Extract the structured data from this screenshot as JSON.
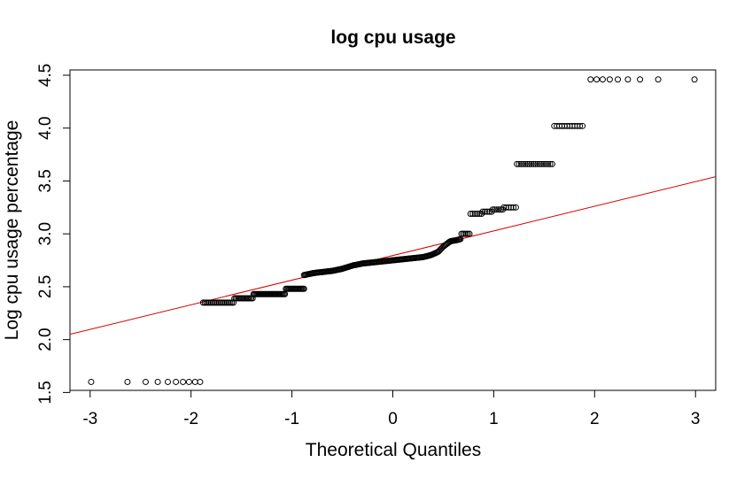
{
  "chart_data": {
    "type": "scatter",
    "subtype": "normal-qq-plot",
    "title": "log cpu usage",
    "xlabel": "Theoretical Quantiles",
    "ylabel": "Log cpu usage percentage",
    "xlim": [
      -3.2,
      3.2
    ],
    "ylim": [
      1.52,
      4.55
    ],
    "xticks": [
      -3,
      -2,
      -1,
      0,
      1,
      2,
      3
    ],
    "xtick_labels": [
      "-3",
      "-2",
      "-1",
      "0",
      "1",
      "2",
      "3"
    ],
    "yticks": [
      1.5,
      2.0,
      2.5,
      3.0,
      3.5,
      4.0,
      4.5
    ],
    "ytick_labels": [
      "1.5",
      "2.0",
      "2.5",
      "3.0",
      "3.5",
      "4.0",
      "4.5"
    ],
    "grid": false,
    "point_color": "#000000",
    "reference_line": {
      "color": "#d40000",
      "x": [
        -3.2,
        3.2
      ],
      "y": [
        2.05,
        3.54
      ]
    },
    "tiers": [
      {
        "y": 1.6,
        "x": [
          -2.99,
          -2.63,
          -2.45,
          -2.33,
          -2.23,
          -2.15,
          -2.08,
          -2.02,
          -1.96,
          -1.91
        ]
      },
      {
        "y": 2.35,
        "x_start": -1.88,
        "x_end": -1.58,
        "count": 20
      },
      {
        "y": 2.39,
        "x_start": -1.57,
        "x_end": -1.39,
        "count": 14
      },
      {
        "y": 2.43,
        "x_start": -1.38,
        "x_end": -1.07,
        "count": 28
      },
      {
        "y": 2.48,
        "x_start": -1.06,
        "x_end": -0.88,
        "count": 18
      },
      {
        "y": 3.0,
        "x_start": 0.68,
        "x_end": 0.76,
        "count": 6
      },
      {
        "y": 3.19,
        "x_start": 0.77,
        "x_end": 0.88,
        "count": 6
      },
      {
        "y": 3.21,
        "x_start": 0.89,
        "x_end": 0.98,
        "count": 5
      },
      {
        "y": 3.23,
        "x_start": 0.99,
        "x_end": 1.09,
        "count": 6
      },
      {
        "y": 3.25,
        "x_start": 1.1,
        "x_end": 1.22,
        "count": 6
      },
      {
        "y": 3.66,
        "x_start": 1.23,
        "x_end": 1.58,
        "count": 18
      },
      {
        "y": 4.02,
        "x_start": 1.6,
        "x_end": 1.88,
        "count": 12
      },
      {
        "y": 4.46,
        "x": [
          1.96,
          2.02,
          2.08,
          2.15,
          2.23,
          2.33,
          2.45,
          2.63,
          2.99
        ]
      }
    ],
    "central_curve": {
      "x": [
        -0.88,
        -0.78,
        -0.6,
        -0.5,
        -0.4,
        -0.3,
        -0.2,
        -0.1,
        0.0,
        0.1,
        0.2,
        0.3,
        0.38,
        0.45,
        0.5,
        0.57,
        0.63,
        0.67
      ],
      "y": [
        2.61,
        2.63,
        2.65,
        2.67,
        2.7,
        2.72,
        2.73,
        2.74,
        2.75,
        2.76,
        2.77,
        2.78,
        2.8,
        2.83,
        2.88,
        2.93,
        2.94,
        2.95
      ],
      "count": 150
    }
  }
}
